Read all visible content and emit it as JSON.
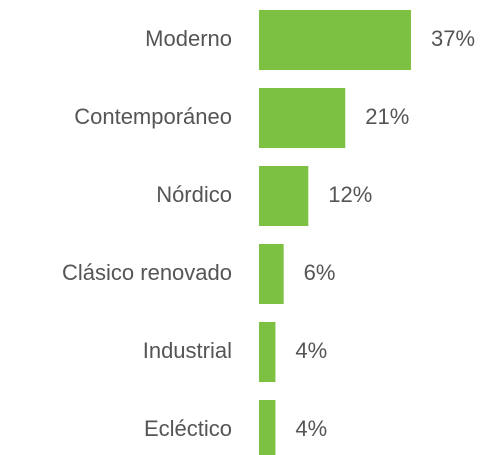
{
  "chart_data": {
    "type": "bar",
    "orientation": "horizontal",
    "categories": [
      "Moderno",
      "Contemporáneo",
      "Nórdico",
      "Clásico renovado",
      "Industrial",
      "Ecléctico"
    ],
    "values": [
      37,
      21,
      12,
      6,
      4,
      4
    ],
    "value_labels": [
      "37%",
      "21%",
      "12%",
      "6%",
      "4%",
      "4%"
    ],
    "color": "#7dc142"
  }
}
